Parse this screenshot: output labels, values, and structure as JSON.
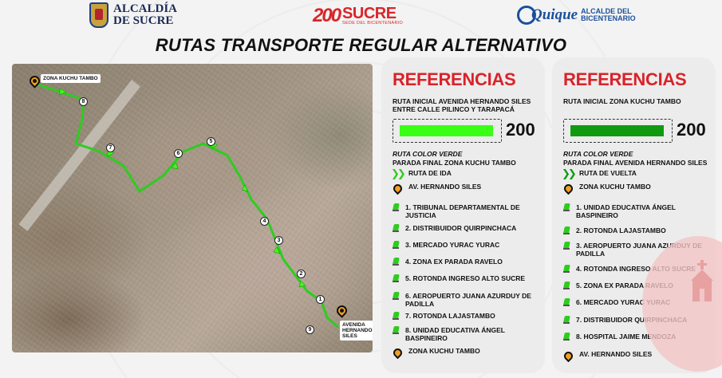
{
  "header": {
    "alcaldia_line1": "ALCALDÍA",
    "alcaldia_line2": "DE SUCRE",
    "sucre_number": "200",
    "sucre_name": "SUCRE",
    "sucre_sub": "SEDE DEL BICENTENARIO",
    "quique_name": "Quique",
    "quique_tag1": "ALCALDE DEL",
    "quique_tag2": "BICENTENARIO"
  },
  "title": "RUTAS TRANSPORTE REGULAR ALTERNATIVO",
  "map": {
    "label_start": "ZONA KUCHU TAMBO",
    "label_end_1": "AVENIDA",
    "label_end_2": "HERNANDO",
    "label_end_3": "SILES",
    "stops": [
      "8",
      "7",
      "6",
      "5",
      "4",
      "3",
      "2",
      "1",
      "9"
    ]
  },
  "left_panel": {
    "title": "REFERENCIAS",
    "start": "RUTA INICIAL AVENIDA HERNANDO SILES ENTRE CALLE PILINCO Y TARAPACÁ",
    "route_number": "200",
    "bar_color": "#39ff14",
    "color_label": "RUTA COLOR VERDE",
    "end": "PARADA FINAL ZONA KUCHU TAMBO",
    "direction": "RUTA DE IDA",
    "origin": "AV. HERNANDO SILES",
    "stops": [
      "1. TRIBUNAL DEPARTAMENTAL DE JUSTICIA",
      "2. DISTRIBUIDOR QUIRPINCHACA",
      "3. MERCADO YURAC YURAC",
      "4. ZONA EX PARADA RAVELO",
      "5. ROTONDA INGRESO ALTO SUCRE",
      "6. AEROPUERTO JUANA AZURDUY DE PADILLA",
      "7. ROTONDA LAJASTAMBO",
      "8. UNIDAD EDUCATIVA ÁNGEL BASPINEIRO"
    ],
    "destination": "ZONA KUCHU TAMBO"
  },
  "right_panel": {
    "title": "REFERENCIAS",
    "start": "RUTA INICIAL   ZONA KUCHU TAMBO",
    "route_number": "200",
    "bar_color": "#109a10",
    "color_label": "RUTA COLOR VERDE",
    "end": "PARADA FINAL AVENIDA HERNANDO SILES",
    "direction": "RUTA DE VUELTA",
    "origin": "ZONA KUCHU TAMBO",
    "stops": [
      "1. UNIDAD EDUCATIVA ÁNGEL BASPINEIRO",
      "2. ROTONDA LAJASTAMBO",
      "3. AEROPUERTO JUANA AZURDUY DE PADILLA",
      "4. ROTONDA INGRESO ALTO SUCRE",
      "5. ZONA EX PARADA RAVELO",
      "6. MERCADO YURAC YURAC",
      "7. DISTRIBUIDOR QUIRPINCHACA",
      "8. HOSPITAL JAIME MENDOZA"
    ],
    "destination": "AV. HERNANDO SILES"
  },
  "colors": {
    "accent_red": "#d8232a",
    "route_green": "#39ff14",
    "marker_orange": "#f0a020"
  }
}
